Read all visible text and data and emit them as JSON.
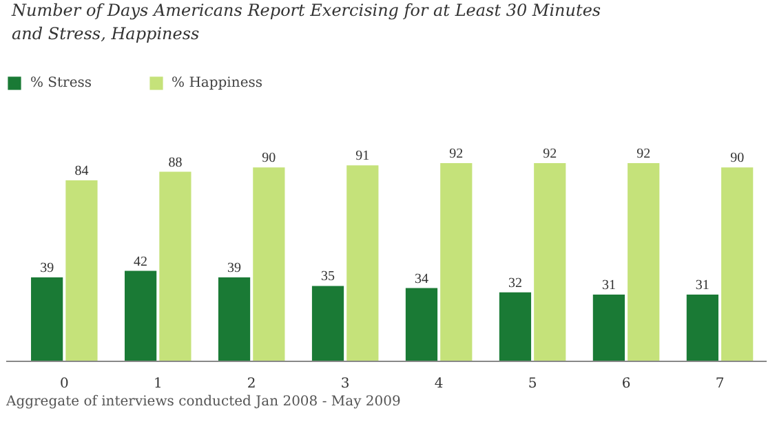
{
  "chart_data": {
    "type": "bar",
    "title": "Number of Days Americans Report Exercising for at Least 30 Minutes and Stress, Happiness",
    "categories": [
      "0",
      "1",
      "2",
      "3",
      "4",
      "5",
      "6",
      "7"
    ],
    "series": [
      {
        "name": "% Stress",
        "color": "#1a7a35",
        "values": [
          39,
          42,
          39,
          35,
          34,
          32,
          31,
          31
        ]
      },
      {
        "name": "% Happiness",
        "color": "#c5e27a",
        "values": [
          84,
          88,
          90,
          91,
          92,
          92,
          92,
          90
        ]
      }
    ],
    "data_labels": true,
    "legend": "top left",
    "annotations": [
      "Aggregate of interviews conducted Jan 2008 - May 2009"
    ]
  }
}
